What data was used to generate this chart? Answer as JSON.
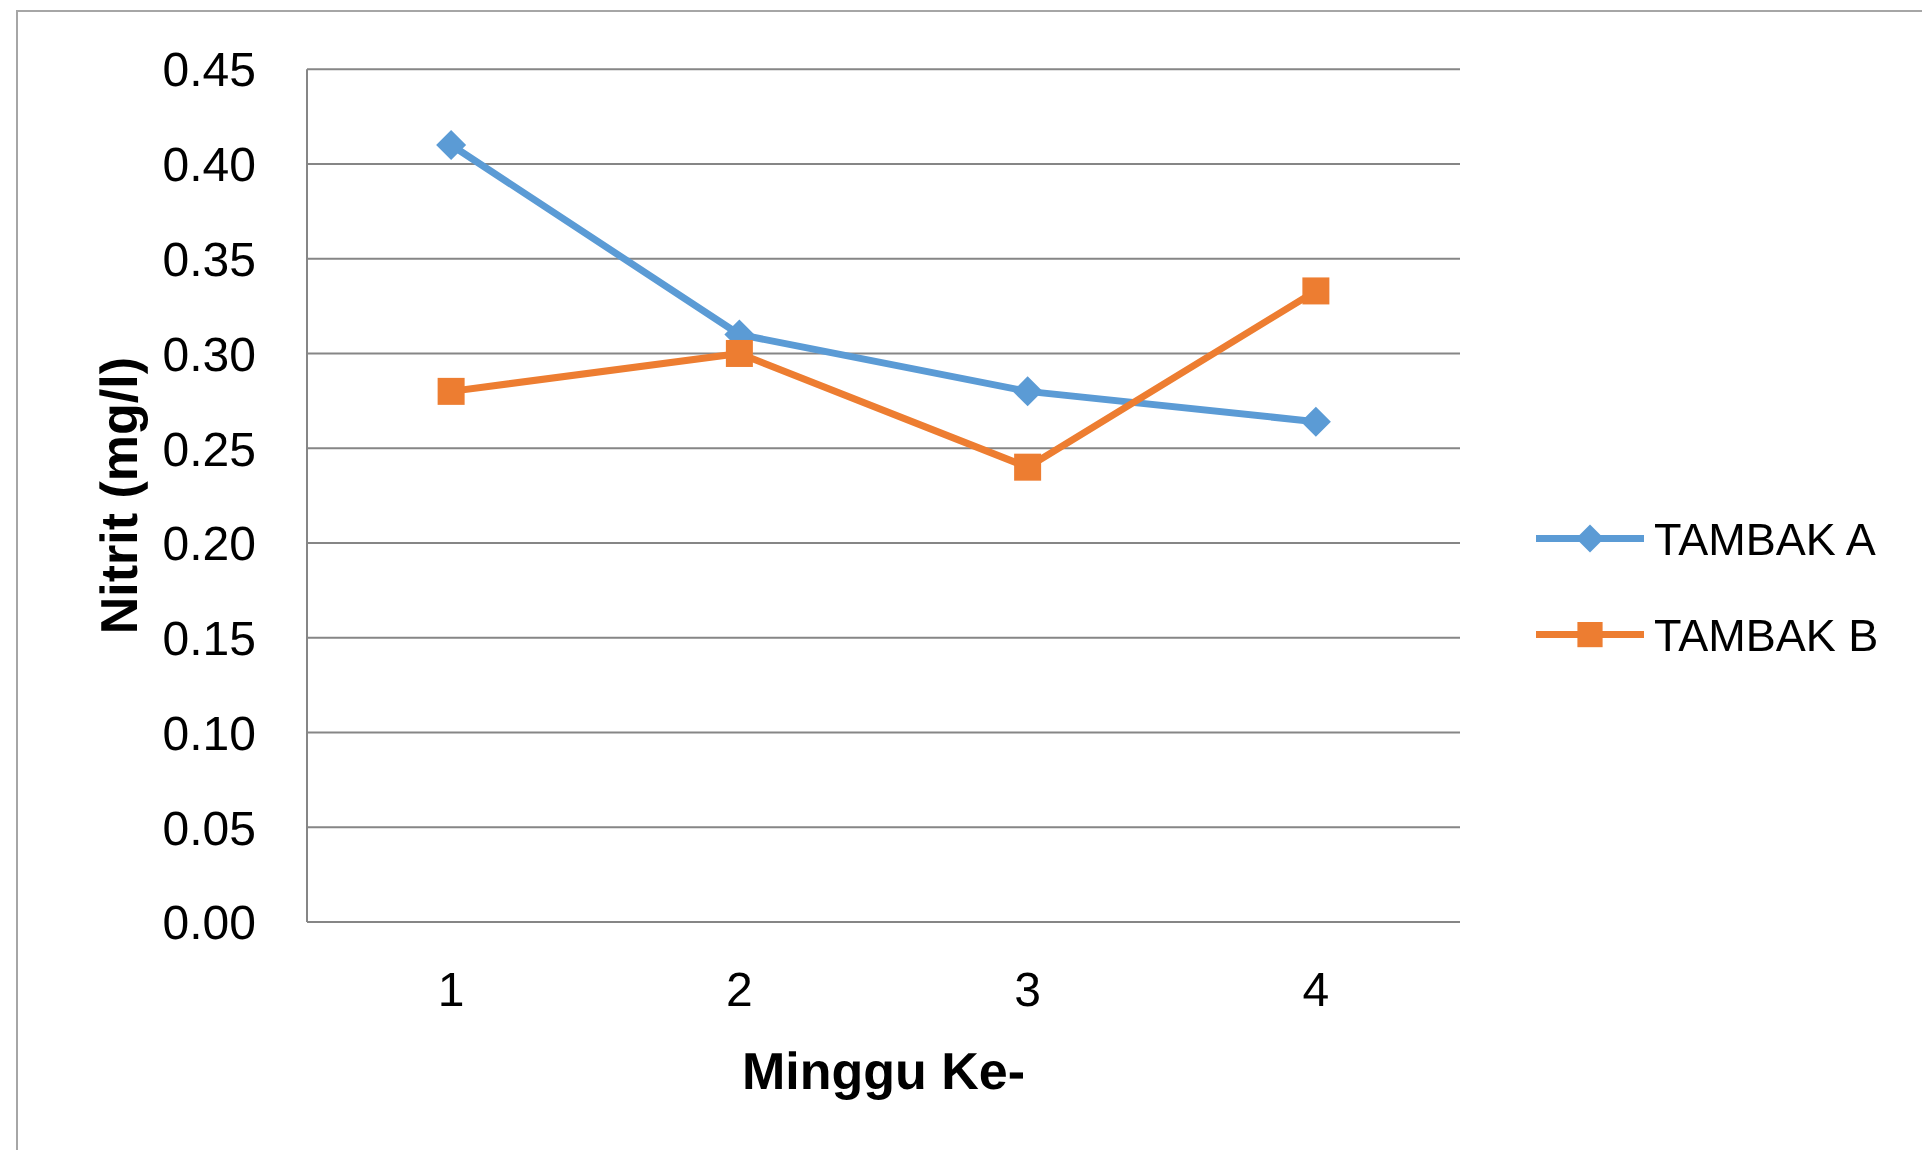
{
  "chart_data": {
    "type": "line",
    "xlabel": "Minggu Ke-",
    "ylabel": "Nitrit (mg/l)",
    "categories": [
      "1",
      "2",
      "3",
      "4"
    ],
    "series": [
      {
        "name": "TAMBAK A",
        "color": "#5b9bd5",
        "marker": "diamond",
        "values": [
          0.41,
          0.31,
          0.28,
          0.264
        ]
      },
      {
        "name": "TAMBAK B",
        "color": "#ed7d31",
        "marker": "square",
        "values": [
          0.28,
          0.3,
          0.24,
          0.333
        ]
      }
    ],
    "ylim": [
      0,
      0.45
    ],
    "yticks": [
      {
        "value": 0,
        "label": "0.00"
      },
      0.05,
      {
        "value": 0.1,
        "label": "0.10"
      },
      0.15,
      {
        "value": 0.2,
        "label": "0.20"
      },
      0.25,
      {
        "value": 0.3,
        "label": "0.30"
      },
      0.35,
      {
        "value": 0.4,
        "label": "0.40"
      },
      0.45
    ],
    "grid": "y",
    "legend": "right",
    "line_style": "solid"
  }
}
